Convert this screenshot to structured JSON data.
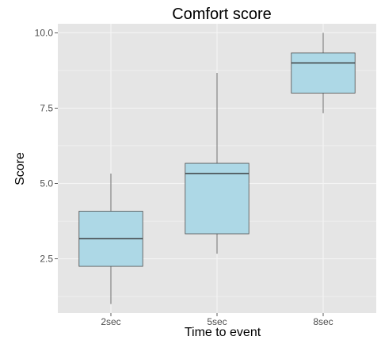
{
  "chart_data": {
    "type": "boxplot",
    "title": "Comfort score",
    "xlabel": "Time to event",
    "ylabel": "Score",
    "categories": [
      "2sec",
      "5sec",
      "8sec"
    ],
    "boxes": [
      {
        "category": "2sec",
        "min": 1.0,
        "q1": 2.25,
        "median": 3.17,
        "q3": 4.08,
        "max": 5.33
      },
      {
        "category": "5sec",
        "min": 2.67,
        "q1": 3.33,
        "median": 5.33,
        "q3": 5.67,
        "max": 8.67
      },
      {
        "category": "8sec",
        "min": 7.33,
        "q1": 8.0,
        "median": 9.0,
        "q3": 9.33,
        "max": 10.0
      }
    ],
    "ylim": [
      0.7,
      10.3
    ],
    "yticks": [
      2.5,
      5.0,
      7.5,
      10.0
    ],
    "ytick_labels": [
      "2.5",
      "5.0",
      "7.5",
      "10.0"
    ],
    "grid": true,
    "colors": {
      "panel": "#e5e5e5",
      "grid": "#f4f4f4",
      "box_fill": "#add8e6",
      "box_stroke": "#4d4d4d"
    }
  }
}
